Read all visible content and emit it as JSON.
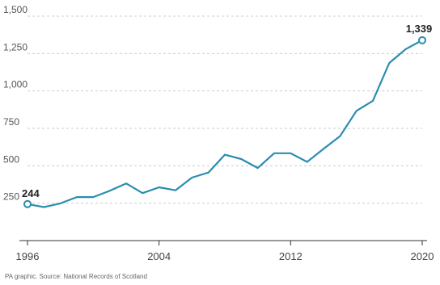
{
  "chart_data": {
    "type": "line",
    "title": "",
    "xlabel": "",
    "ylabel": "",
    "xlim": [
      1996,
      2020
    ],
    "ylim": [
      0,
      1500
    ],
    "y_ticks": [
      250,
      500,
      750,
      1000,
      1250,
      1500
    ],
    "y_tick_labels": [
      "250",
      "500",
      "750",
      "1,000",
      "1,250",
      "1,500"
    ],
    "x_ticks": [
      1996,
      2004,
      2012,
      2020
    ],
    "x_tick_labels": [
      "1996",
      "2004",
      "2012",
      "2020"
    ],
    "grid": "horizontal dashed",
    "series": [
      {
        "color": "#2b8cb0",
        "x": [
          1996,
          1997,
          1998,
          1999,
          2000,
          2001,
          2002,
          2003,
          2004,
          2005,
          2006,
          2007,
          2008,
          2009,
          2010,
          2011,
          2012,
          2013,
          2014,
          2015,
          2016,
          2017,
          2018,
          2019,
          2020
        ],
        "values": [
          244,
          224,
          249,
          291,
          291,
          333,
          382,
          317,
          356,
          336,
          421,
          455,
          574,
          545,
          485,
          584,
          584,
          526,
          613,
          697,
          867,
          934,
          1187,
          1280,
          1339
        ]
      }
    ],
    "annotations": [
      {
        "x": 1996,
        "value": 244,
        "label": "244"
      },
      {
        "x": 2020,
        "value": 1339,
        "label": "1,339"
      }
    ]
  },
  "source_text": "PA graphic. Source: National Records of Scotland"
}
